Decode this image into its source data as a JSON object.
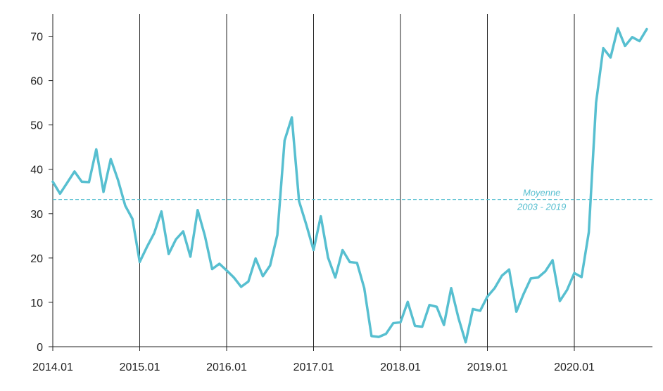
{
  "chart_data": {
    "type": "line",
    "title": "",
    "xlabel": "",
    "ylabel": "",
    "ylim": [
      0,
      75
    ],
    "yticks": [
      0,
      10,
      20,
      30,
      40,
      50,
      60,
      70
    ],
    "xticks": [
      "2014.01",
      "2015.01",
      "2016.01",
      "2017.01",
      "2018.01",
      "2019.01",
      "2020.01"
    ],
    "x_start": "2014.01",
    "grid": "vertical lines at each year",
    "series": [
      {
        "color": "#57bfd0",
        "values": [
          37.2,
          34.5,
          37.0,
          39.5,
          37.2,
          37.1,
          44.5,
          34.9,
          42.3,
          37.6,
          31.8,
          28.8,
          19.1,
          22.5,
          25.6,
          30.5,
          20.9,
          24.2,
          26.0,
          20.3,
          30.8,
          25.0,
          17.5,
          18.7,
          17.2,
          15.6,
          13.5,
          14.7,
          19.9,
          15.9,
          18.3,
          25.2,
          46.5,
          51.7,
          32.8,
          27.5,
          21.8,
          29.4,
          20.1,
          15.6,
          21.8,
          19.1,
          18.9,
          13.2,
          2.4,
          2.2,
          2.9,
          5.3,
          5.5,
          10.1,
          4.7,
          4.5,
          9.4,
          9.0,
          4.9,
          13.2,
          6.5,
          1.0,
          8.5,
          8.1,
          11.3,
          13.2,
          16.0,
          17.4,
          7.9,
          11.9,
          15.4,
          15.6,
          17.0,
          19.5,
          10.3,
          12.8,
          16.6,
          15.7,
          25.8,
          55.0,
          67.3,
          65.2,
          71.8,
          67.8,
          69.8,
          68.9,
          71.6
        ]
      }
    ],
    "reference_line": {
      "value": 33.2,
      "color": "#57bfd0",
      "label_line1": "Moyenne",
      "label_line2": "2003 - 2019"
    }
  }
}
